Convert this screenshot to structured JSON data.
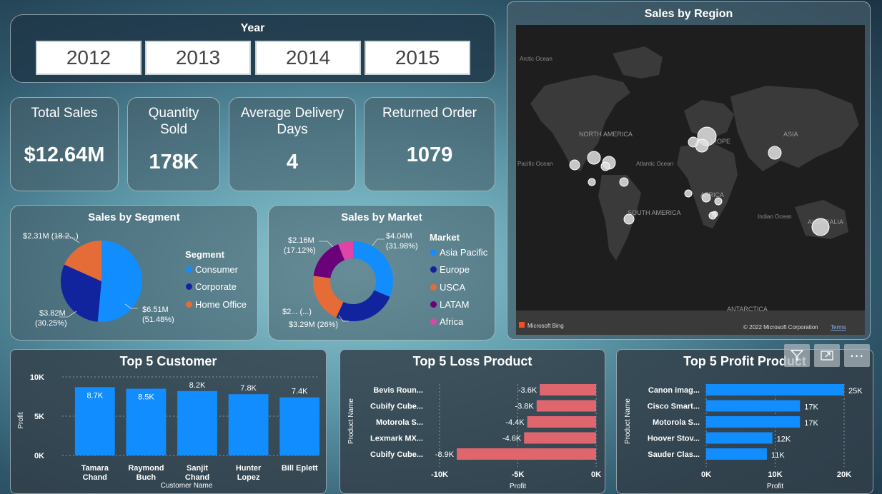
{
  "year_slicer": {
    "title": "Year",
    "options": [
      "2012",
      "2013",
      "2014",
      "2015"
    ]
  },
  "kpis": {
    "total_sales": {
      "label": "Total Sales",
      "value": "$12.64M"
    },
    "quantity_sold": {
      "label": "Quantity Sold",
      "value": "178K"
    },
    "avg_delivery": {
      "label": "Average Delivery Days",
      "value": "4"
    },
    "returned_order": {
      "label": "Returned Order",
      "value": "1079"
    }
  },
  "map": {
    "title": "Sales by Region",
    "labels": {
      "arctic": "Arctic Ocean",
      "north_america": "NORTH AMERICA",
      "europe": "EUROPE",
      "asia": "ASIA",
      "pacific": "Pacific Ocean",
      "atlantic": "Atlantic Ocean",
      "africa": "AFRICA",
      "south_america": "SOUTH AMERICA",
      "indian": "Indian Ocean",
      "australia": "AUSTRALIA",
      "antarctica": "ANTARCTICA"
    },
    "attribution_left": "Microsoft Bing",
    "attribution_right": "© 2022 Microsoft Corporation",
    "terms": "Terms"
  },
  "segment_chart": {
    "title": "Sales by Segment",
    "legend_title": "Segment",
    "colors": {
      "Consumer": "#118dff",
      "Corporate": "#12239e",
      "Home Office": "#e66c37"
    },
    "labels": {
      "home_office": "$2.31M (18.2...)",
      "corporate_value": "$3.82M",
      "corporate_pct": "(30.25%)",
      "consumer_value": "$6.51M",
      "consumer_pct": "(51.48%)"
    }
  },
  "market_chart": {
    "title": "Sales by Market",
    "legend_title": "Market",
    "colors": {
      "Asia Pacific": "#118dff",
      "Europe": "#12239e",
      "USCA": "#e66c37",
      "LATAM": "#6b007b",
      "Africa": "#e044a7"
    },
    "labels": {
      "asia_value": "$4.04M",
      "asia_pct": "(31.98%)",
      "latam_value": "$2.16M",
      "latam_pct": "(17.12%)",
      "usca": "$2... (...)",
      "europe": "$3.29M (26%)"
    }
  },
  "chart_data": [
    {
      "type": "pie",
      "title": "Sales by Segment",
      "categories": [
        "Consumer",
        "Corporate",
        "Home Office"
      ],
      "values": [
        6.51,
        3.82,
        2.31
      ],
      "percent": [
        51.48,
        30.25,
        18.2
      ],
      "unit": "$M"
    },
    {
      "type": "pie",
      "title": "Sales by Market",
      "categories": [
        "Asia Pacific",
        "Europe",
        "USCA",
        "LATAM",
        "Africa"
      ],
      "values": [
        4.04,
        3.29,
        2.6,
        2.16,
        0.78
      ],
      "percent": [
        31.98,
        26,
        20.5,
        17.12,
        6.2
      ],
      "unit": "$M"
    },
    {
      "type": "bar",
      "title": "Top 5 Customer",
      "categories": [
        "Tamara Chand",
        "Raymond Buch",
        "Sanjit Chand",
        "Hunter Lopez",
        "Bill Eplett"
      ],
      "values": [
        8700,
        8500,
        8200,
        7800,
        7400
      ],
      "value_labels": [
        "8.7K",
        "8.5K",
        "8.2K",
        "7.8K",
        "7.4K"
      ],
      "xlabel": "Customer Name",
      "ylabel": "Profit",
      "ylim": [
        0,
        10000
      ],
      "yticks": [
        "0K",
        "5K",
        "10K"
      ],
      "color": "#118dff"
    },
    {
      "type": "bar",
      "orientation": "horizontal",
      "title": "Top 5 Loss Product",
      "categories": [
        "Bevis Roun...",
        "Cubify Cube...",
        "Motorola S...",
        "Lexmark MX...",
        "Cubify Cube..."
      ],
      "values": [
        -3600,
        -3800,
        -4400,
        -4600,
        -8900
      ],
      "value_labels": [
        "-3.6K",
        "-3.8K",
        "-4.4K",
        "-4.6K",
        "-8.9K"
      ],
      "xlabel": "Profit",
      "ylabel": "Product Name",
      "xlim": [
        -10000,
        0
      ],
      "xticks": [
        "-10K",
        "-5K",
        "0K"
      ],
      "color": "#e0666e"
    },
    {
      "type": "bar",
      "orientation": "horizontal",
      "title": "Top 5 Profit Product",
      "categories": [
        "Canon imag...",
        "Cisco Smart...",
        "Motorola S...",
        "Hoover Stov...",
        "Sauder Clas..."
      ],
      "values": [
        25000,
        17000,
        17000,
        12000,
        11000
      ],
      "value_labels": [
        "25K",
        "17K",
        "17K",
        "12K",
        "11K"
      ],
      "xlabel": "Profit",
      "ylabel": "Product Name",
      "xlim": [
        0,
        25000
      ],
      "xticks": [
        "0K",
        "10K",
        "20K"
      ],
      "color": "#118dff"
    }
  ],
  "visual_header": {
    "filter_icon": "filter-icon",
    "focus_icon": "focus-mode-icon",
    "more": "⋯"
  }
}
